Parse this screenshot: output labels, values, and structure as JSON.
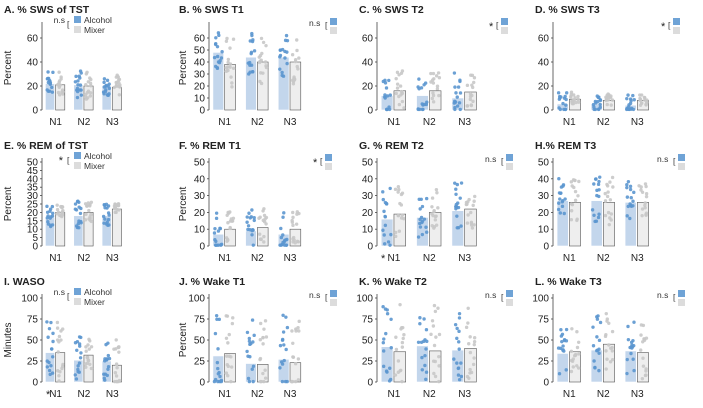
{
  "figure": {
    "group_colors": {
      "Alcohol": "#6fa3d6",
      "Mixer": "#dcdcdc"
    },
    "bar_colors": {
      "Alcohol": "#c3d6ec",
      "Mixer": "#eeeeee"
    },
    "dot_colors": {
      "Alcohol": "#5b96cf",
      "Mixer": "#c8c8c8"
    }
  },
  "chart_data": [
    {
      "id": "A",
      "type": "bar",
      "title": "A. % SWS of TST",
      "ylabel": "Percent",
      "ylim": [
        0,
        70
      ],
      "ticks": [
        0,
        20,
        40,
        60
      ],
      "categories": [
        "N1",
        "N2",
        "N3"
      ],
      "series": [
        {
          "name": "Alcohol",
          "values": [
            22,
            21,
            20
          ]
        },
        {
          "name": "Mixer",
          "values": [
            21,
            20,
            19
          ]
        }
      ],
      "legend": [
        "Alcohol",
        "Mixer"
      ],
      "sig": "n.s",
      "sig_star": "",
      "dot_max": [
        34,
        36,
        31
      ]
    },
    {
      "id": "B",
      "type": "bar",
      "title": "B. % SWS T1",
      "ylabel": "Percent",
      "ylim": [
        0,
        70
      ],
      "ticks": [
        0,
        10,
        20,
        30,
        40,
        50,
        60
      ],
      "categories": [
        "N1",
        "N2",
        "N3"
      ],
      "series": [
        {
          "values": [
            48,
            44,
            44
          ]
        },
        {
          "values": [
            38,
            40,
            40
          ]
        }
      ],
      "legend": [],
      "sig": "n.s",
      "sig_star": "",
      "dot_max": [
        68,
        68,
        66
      ]
    },
    {
      "id": "C",
      "type": "bar",
      "title": "C. % SWS T2",
      "ylabel": "",
      "ylim": [
        0,
        70
      ],
      "ticks": [
        0,
        20,
        40,
        60
      ],
      "categories": [
        "N1",
        "N2",
        "N3"
      ],
      "series": [
        {
          "values": [
            12,
            12,
            10
          ]
        },
        {
          "values": [
            16,
            16,
            15
          ]
        }
      ],
      "legend": [],
      "sig": "",
      "sig_star": "*",
      "dot_max": [
        36,
        34,
        34
      ]
    },
    {
      "id": "D",
      "type": "bar",
      "title": "D. % SWS T3",
      "ylabel": "",
      "ylim": [
        0,
        70
      ],
      "ticks": [
        0,
        20,
        40,
        60
      ],
      "categories": [
        "N1",
        "N2",
        "N3"
      ],
      "series": [
        {
          "values": [
            5,
            5,
            4
          ]
        },
        {
          "values": [
            9,
            8,
            8
          ]
        }
      ],
      "legend": [],
      "sig": "",
      "sig_star": "*",
      "dot_max": [
        16,
        15,
        14
      ]
    },
    {
      "id": "E",
      "type": "bar",
      "title": "E. % REM of TST",
      "ylabel": "Percent",
      "ylim": [
        0,
        50
      ],
      "ticks": [
        0,
        5,
        10,
        15,
        20,
        25,
        30,
        35,
        40,
        45,
        50
      ],
      "categories": [
        "N1",
        "N2",
        "N3"
      ],
      "series": [
        {
          "name": "Alcohol",
          "values": [
            17,
            18,
            18
          ]
        },
        {
          "name": "Mixer",
          "values": [
            20,
            20,
            22
          ]
        }
      ],
      "legend": [
        "Alcohol",
        "Mixer"
      ],
      "sig": "",
      "sig_star": "*",
      "dot_max": [
        25,
        28,
        26
      ]
    },
    {
      "id": "F",
      "type": "bar",
      "title": "F. % REM T1",
      "ylabel": "Percent",
      "ylim": [
        0,
        50
      ],
      "ticks": [
        0,
        10,
        20,
        30,
        40,
        50
      ],
      "categories": [
        "N1",
        "N2",
        "N3"
      ],
      "series": [
        {
          "values": [
            7,
            9,
            7
          ]
        },
        {
          "values": [
            10,
            11,
            10
          ]
        }
      ],
      "legend": [],
      "sig": "",
      "sig_star": "*",
      "dot_max": [
        22,
        24,
        22
      ]
    },
    {
      "id": "G",
      "type": "bar",
      "title": "G. % REM T2",
      "ylabel": "",
      "ylim": [
        0,
        50
      ],
      "ticks": [
        0,
        10,
        20,
        30,
        40,
        50
      ],
      "categories": [
        "N1",
        "N2",
        "N3"
      ],
      "series": [
        {
          "values": [
            16,
            17,
            21
          ]
        },
        {
          "values": [
            19,
            20,
            22
          ]
        }
      ],
      "legend": [],
      "sig": "n.s",
      "sig_star": "*",
      "dot_max": [
        38,
        36,
        40
      ]
    },
    {
      "id": "H",
      "type": "bar",
      "title": "H.% REM T3",
      "ylabel": "",
      "ylim": [
        0,
        50
      ],
      "ticks": [
        0,
        10,
        20,
        30,
        40,
        50
      ],
      "categories": [
        "N1",
        "N2",
        "N3"
      ],
      "series": [
        {
          "values": [
            27,
            27,
            26
          ]
        },
        {
          "values": [
            26,
            26,
            26
          ]
        }
      ],
      "legend": [],
      "sig": "n.s",
      "sig_star": "",
      "dot_max": [
        42,
        46,
        40
      ]
    },
    {
      "id": "I",
      "type": "bar",
      "title": "I. WASO",
      "ylabel": "Minutes",
      "ylim": [
        0,
        100
      ],
      "ticks": [
        0,
        25,
        50,
        75,
        100
      ],
      "categories": [
        "N1",
        "N2",
        "N3"
      ],
      "series": [
        {
          "name": "Alcohol",
          "values": [
            35,
            26,
            25
          ]
        },
        {
          "name": "Mixer",
          "values": [
            35,
            32,
            20
          ]
        }
      ],
      "legend": [
        "Alcohol",
        "Mixer"
      ],
      "sig": "n.s",
      "sig_star": "*",
      "dot_max": [
        82,
        60,
        58
      ]
    },
    {
      "id": "J",
      "type": "bar",
      "title": "J. % Wake T1",
      "ylabel": "Percent",
      "ylim": [
        0,
        100
      ],
      "ticks": [
        0,
        25,
        50,
        75,
        100
      ],
      "categories": [
        "N1",
        "N2",
        "N3"
      ],
      "series": [
        {
          "values": [
            31,
            22,
            27
          ]
        },
        {
          "values": [
            34,
            21,
            23
          ]
        }
      ],
      "legend": [],
      "sig": "n.s",
      "sig_star": "",
      "dot_max": [
        86,
        82,
        90
      ]
    },
    {
      "id": "K",
      "type": "bar",
      "title": "K. % Wake T2",
      "ylabel": "",
      "ylim": [
        0,
        100
      ],
      "ticks": [
        0,
        25,
        50,
        75,
        100
      ],
      "categories": [
        "N1",
        "N2",
        "N3"
      ],
      "series": [
        {
          "values": [
            42,
            43,
            38
          ]
        },
        {
          "values": [
            36,
            37,
            40
          ]
        }
      ],
      "legend": [],
      "sig": "n.s",
      "sig_star": "",
      "dot_max": [
        100,
        100,
        98
      ]
    },
    {
      "id": "L",
      "type": "bar",
      "title": "L. % Wake T3",
      "ylabel": "",
      "ylim": [
        0,
        100
      ],
      "ticks": [
        0,
        25,
        50,
        75,
        100
      ],
      "categories": [
        "N1",
        "N2",
        "N3"
      ],
      "series": [
        {
          "values": [
            34,
            38,
            37
          ]
        },
        {
          "values": [
            36,
            45,
            35
          ]
        }
      ],
      "legend": [],
      "sig": "n.s",
      "sig_star": "",
      "dot_max": [
        70,
        88,
        80
      ]
    }
  ]
}
